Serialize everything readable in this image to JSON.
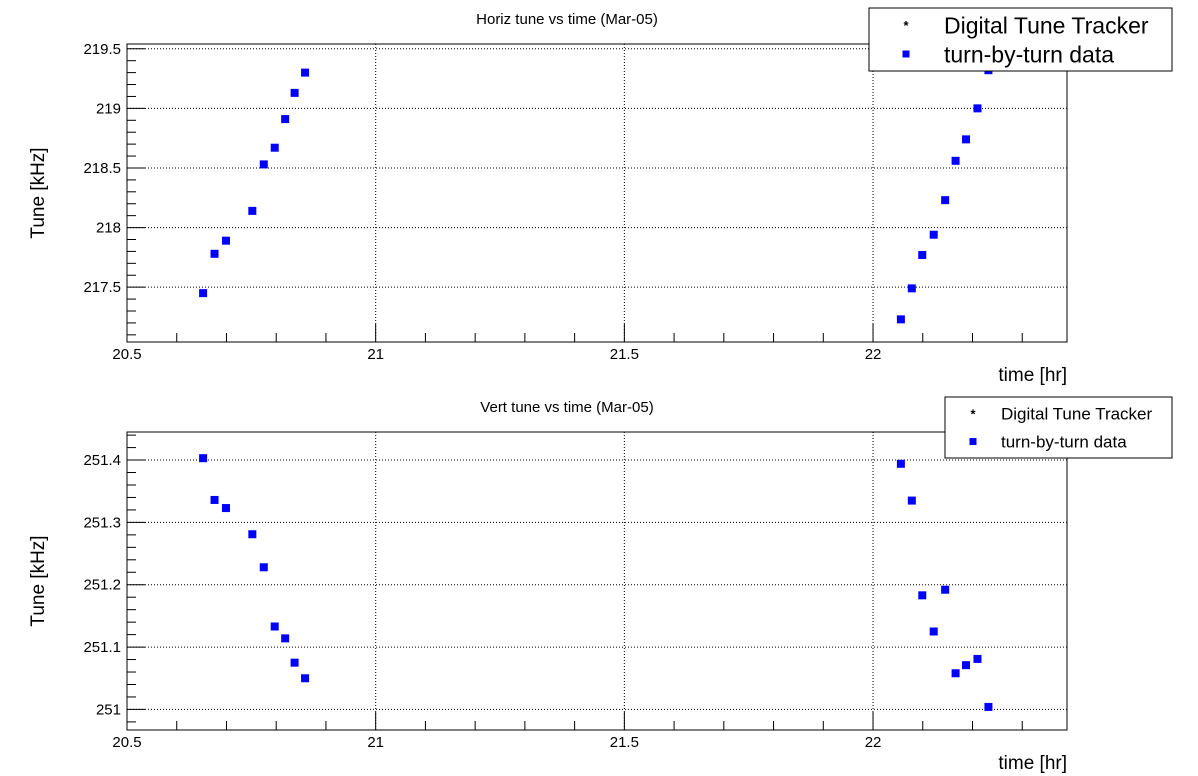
{
  "chart_data": [
    {
      "type": "scatter",
      "title": "Horiz tune vs time (Mar-05)",
      "xlabel": "time [hr]",
      "ylabel": "Tune [kHz]",
      "xlim": [
        20.5,
        22.39
      ],
      "ylim": [
        217.04,
        219.54
      ],
      "grid": true,
      "legend": "top-right",
      "xticks": [
        {
          "value": 20.5,
          "label": "20.5"
        },
        {
          "value": 21,
          "label": "21"
        },
        {
          "value": 21.5,
          "label": "21.5"
        },
        {
          "value": 22,
          "label": "22"
        }
      ],
      "yticks": [
        {
          "value": 217.5,
          "label": "217.5"
        },
        {
          "value": 218,
          "label": "218"
        },
        {
          "value": 218.5,
          "label": "218.5"
        },
        {
          "value": 219,
          "label": "219"
        },
        {
          "value": 219.5,
          "label": "219.5"
        }
      ],
      "series": [
        {
          "name": "Digital Tune Tracker",
          "marker": "star",
          "color": "#ff0000",
          "points": []
        },
        {
          "name": "turn-by-turn data",
          "marker": "square",
          "color": "#0000ff",
          "points": [
            [
              20.653,
              217.45
            ],
            [
              20.676,
              217.78
            ],
            [
              20.699,
              217.89
            ],
            [
              20.752,
              218.14
            ],
            [
              20.775,
              218.53
            ],
            [
              20.797,
              218.67
            ],
            [
              20.818,
              218.91
            ],
            [
              20.837,
              219.13
            ],
            [
              20.858,
              219.3
            ],
            [
              22.056,
              217.23
            ],
            [
              22.078,
              217.49
            ],
            [
              22.099,
              217.77
            ],
            [
              22.122,
              217.94
            ],
            [
              22.145,
              218.23
            ],
            [
              22.166,
              218.56
            ],
            [
              22.187,
              218.74
            ],
            [
              22.21,
              219.0
            ],
            [
              22.232,
              219.32
            ]
          ]
        }
      ]
    },
    {
      "type": "scatter",
      "title": "Vert tune vs time (Mar-05)",
      "xlabel": "time [hr]",
      "ylabel": "Tune [kHz]",
      "xlim": [
        20.5,
        22.39
      ],
      "ylim": [
        250.967,
        251.445
      ],
      "grid": true,
      "legend": "top-right",
      "xticks": [
        {
          "value": 20.5,
          "label": "20.5"
        },
        {
          "value": 21,
          "label": "21"
        },
        {
          "value": 21.5,
          "label": "21.5"
        },
        {
          "value": 22,
          "label": "22"
        }
      ],
      "yticks": [
        {
          "value": 251,
          "label": "251"
        },
        {
          "value": 251.1,
          "label": "251.1"
        },
        {
          "value": 251.2,
          "label": "251.2"
        },
        {
          "value": 251.3,
          "label": "251.3"
        },
        {
          "value": 251.4,
          "label": "251.4"
        }
      ],
      "series": [
        {
          "name": "Digital Tune Tracker",
          "marker": "star",
          "color": "#ff0000",
          "points": []
        },
        {
          "name": "turn-by-turn data",
          "marker": "square",
          "color": "#0000ff",
          "points": [
            [
              20.653,
              251.403
            ],
            [
              20.676,
              251.336
            ],
            [
              20.699,
              251.323
            ],
            [
              20.752,
              251.281
            ],
            [
              20.775,
              251.228
            ],
            [
              20.797,
              251.133
            ],
            [
              20.818,
              251.114
            ],
            [
              20.837,
              251.075
            ],
            [
              20.858,
              251.05
            ],
            [
              22.056,
              251.394
            ],
            [
              22.078,
              251.335
            ],
            [
              22.099,
              251.183
            ],
            [
              22.122,
              251.125
            ],
            [
              22.145,
              251.192
            ],
            [
              22.166,
              251.058
            ],
            [
              22.187,
              251.071
            ],
            [
              22.21,
              251.081
            ],
            [
              22.232,
              251.004
            ]
          ]
        }
      ]
    }
  ]
}
